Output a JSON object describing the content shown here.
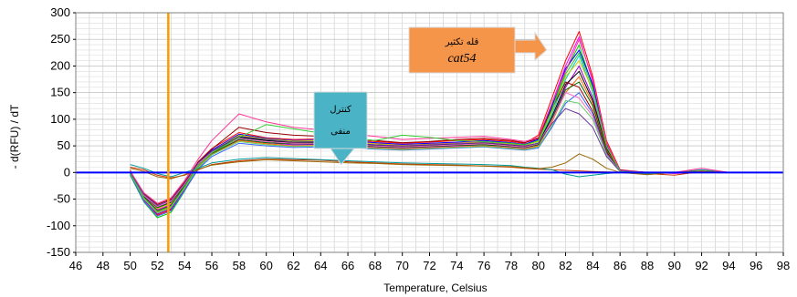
{
  "chart_data": {
    "type": "line",
    "xlabel": "Temperature, Celsius",
    "ylabel": "- d(RFU) / dT",
    "xlim": [
      46,
      98
    ],
    "ylim": [
      -150,
      300
    ],
    "x_ticks": [
      46,
      48,
      50,
      52,
      54,
      56,
      58,
      60,
      62,
      64,
      66,
      68,
      70,
      72,
      74,
      76,
      78,
      80,
      82,
      84,
      86,
      88,
      90,
      92,
      94,
      96,
      98
    ],
    "y_ticks": [
      -150,
      -100,
      -50,
      0,
      50,
      100,
      150,
      200,
      250,
      300
    ],
    "grid": true,
    "baseline": {
      "y": 0,
      "color": "#0000ff"
    },
    "marker_line": {
      "x": 52.8,
      "color": "#ff9900"
    },
    "annotations": [
      {
        "lines": [
          "قله تکثیر",
          "cat54"
        ],
        "fill": "#f4954a",
        "arrow_to": [
          80.6,
          230
        ]
      },
      {
        "lines": [
          "کنترل",
          "منفی"
        ],
        "fill": "#4ab3c6",
        "arrow_to": [
          65.5,
          15
        ]
      }
    ],
    "series_colors": [
      "#ff0000",
      "#ff00ff",
      "#00cc00",
      "#0000ff",
      "#00cccc",
      "#cccc00",
      "#9900cc",
      "#000000",
      "#ff6600",
      "#006600",
      "#990000",
      "#3366ff",
      "#ff66cc",
      "#66cc66",
      "#663399",
      "#cc3300",
      "#009999",
      "#996600",
      "#ff3399",
      "#33cc33"
    ],
    "series_note": "approximate melt curves",
    "series": [
      {
        "x": [
          50,
          51,
          52,
          53,
          54,
          55,
          56,
          58,
          60,
          62,
          64,
          66,
          68,
          70,
          72,
          74,
          76,
          78,
          79,
          80,
          81,
          82,
          83,
          84,
          85,
          86,
          88,
          90,
          92,
          94
        ],
        "values": [
          5,
          -50,
          -80,
          -70,
          -30,
          20,
          45,
          75,
          65,
          62,
          63,
          62,
          58,
          55,
          57,
          60,
          62,
          58,
          55,
          70,
          140,
          210,
          265,
          180,
          60,
          5,
          0,
          0,
          2,
          0
        ]
      },
      {
        "x": [
          50,
          51,
          52,
          53,
          54,
          55,
          56,
          58,
          60,
          62,
          64,
          66,
          68,
          70,
          72,
          74,
          76,
          78,
          79,
          80,
          81,
          82,
          83,
          84,
          85,
          86,
          88,
          90,
          92,
          94
        ],
        "values": [
          0,
          -45,
          -70,
          -60,
          -25,
          15,
          40,
          70,
          62,
          60,
          60,
          58,
          55,
          52,
          54,
          56,
          58,
          55,
          52,
          65,
          130,
          200,
          255,
          170,
          55,
          3,
          0,
          -2,
          0,
          0
        ]
      },
      {
        "x": [
          50,
          51,
          52,
          53,
          54,
          55,
          56,
          58,
          60,
          62,
          64,
          66,
          68,
          70,
          72,
          74,
          76,
          78,
          79,
          80,
          81,
          82,
          83,
          84,
          85,
          86,
          88,
          90,
          92,
          94
        ],
        "values": [
          -5,
          -55,
          -85,
          -75,
          -35,
          10,
          38,
          68,
          60,
          58,
          58,
          55,
          52,
          50,
          52,
          54,
          55,
          52,
          50,
          60,
          120,
          190,
          240,
          160,
          50,
          2,
          0,
          0,
          2,
          0
        ]
      },
      {
        "x": [
          50,
          51,
          52,
          53,
          54,
          55,
          56,
          58,
          60,
          62,
          64,
          66,
          68,
          70,
          72,
          74,
          76,
          78,
          79,
          80,
          81,
          82,
          83,
          84,
          85,
          86,
          88,
          90,
          92,
          94
        ],
        "values": [
          0,
          -40,
          -65,
          -55,
          -20,
          18,
          42,
          72,
          64,
          60,
          61,
          60,
          56,
          53,
          55,
          57,
          60,
          56,
          53,
          62,
          125,
          195,
          230,
          165,
          52,
          4,
          0,
          0,
          0,
          0
        ]
      },
      {
        "x": [
          50,
          51,
          52,
          53,
          54,
          55,
          56,
          58,
          60,
          62,
          64,
          66,
          68,
          70,
          72,
          74,
          76,
          78,
          79,
          80,
          81,
          82,
          83,
          84,
          85,
          86,
          88,
          90,
          92,
          94
        ],
        "values": [
          -2,
          -48,
          -75,
          -65,
          -28,
          12,
          36,
          65,
          58,
          55,
          56,
          54,
          50,
          48,
          50,
          52,
          54,
          50,
          48,
          56,
          110,
          175,
          220,
          150,
          48,
          2,
          0,
          0,
          1,
          0
        ]
      },
      {
        "x": [
          50,
          51,
          52,
          53,
          54,
          55,
          56,
          58,
          60,
          62,
          64,
          66,
          68,
          70,
          72,
          74,
          76,
          78,
          79,
          80,
          81,
          82,
          83,
          84,
          85,
          86,
          88,
          90,
          92,
          94
        ],
        "values": [
          3,
          -42,
          -68,
          -58,
          -22,
          16,
          40,
          70,
          63,
          59,
          60,
          58,
          54,
          51,
          53,
          55,
          57,
          54,
          51,
          58,
          115,
          180,
          210,
          155,
          50,
          3,
          0,
          -1,
          0,
          0
        ]
      },
      {
        "x": [
          50,
          51,
          52,
          53,
          54,
          55,
          56,
          58,
          60,
          62,
          64,
          66,
          68,
          70,
          72,
          74,
          76,
          78,
          79,
          80,
          81,
          82,
          83,
          84,
          85,
          86,
          88,
          90,
          92,
          94
        ],
        "values": [
          -3,
          -52,
          -78,
          -68,
          -32,
          8,
          34,
          62,
          56,
          52,
          53,
          51,
          48,
          46,
          48,
          50,
          52,
          48,
          46,
          52,
          100,
          160,
          200,
          140,
          45,
          2,
          0,
          0,
          0,
          0
        ]
      },
      {
        "x": [
          50,
          51,
          52,
          53,
          54,
          55,
          56,
          58,
          60,
          62,
          64,
          66,
          68,
          70,
          72,
          74,
          76,
          78,
          79,
          80,
          81,
          82,
          83,
          84,
          85,
          86,
          88,
          90,
          92,
          94
        ],
        "values": [
          1,
          -46,
          -72,
          -62,
          -26,
          14,
          38,
          66,
          60,
          56,
          57,
          55,
          51,
          49,
          51,
          53,
          55,
          51,
          49,
          54,
          105,
          165,
          190,
          135,
          44,
          2,
          0,
          0,
          1,
          0
        ]
      },
      {
        "x": [
          50,
          51,
          52,
          53,
          54,
          55,
          56,
          58,
          60,
          62,
          64,
          66,
          68,
          70,
          72,
          74,
          76,
          78,
          79,
          80,
          81,
          82,
          83,
          84,
          85,
          86,
          88,
          90,
          92,
          94
        ],
        "values": [
          -1,
          -50,
          -74,
          -64,
          -30,
          10,
          35,
          60,
          54,
          50,
          51,
          49,
          46,
          44,
          46,
          48,
          50,
          46,
          44,
          50,
          95,
          150,
          180,
          130,
          42,
          2,
          0,
          0,
          0,
          0
        ]
      },
      {
        "x": [
          50,
          51,
          52,
          53,
          54,
          55,
          56,
          58,
          60,
          62,
          64,
          66,
          68,
          70,
          72,
          74,
          76,
          78,
          79,
          80,
          81,
          82,
          83,
          84,
          85,
          86,
          88,
          90,
          92,
          94
        ],
        "values": [
          2,
          -44,
          -66,
          -56,
          -24,
          14,
          36,
          62,
          56,
          54,
          54,
          52,
          49,
          47,
          49,
          51,
          52,
          49,
          47,
          52,
          100,
          155,
          170,
          125,
          40,
          2,
          0,
          0,
          0,
          0
        ]
      },
      {
        "x": [
          50,
          51,
          52,
          53,
          54,
          55,
          56,
          58,
          60,
          62,
          64,
          66,
          68,
          70,
          72,
          74,
          76,
          78,
          79,
          80,
          81,
          82,
          83,
          84,
          85,
          86,
          88,
          90,
          92,
          94
        ],
        "values": [
          0,
          -40,
          -60,
          -50,
          -18,
          20,
          44,
          85,
          75,
          70,
          68,
          64,
          60,
          56,
          58,
          62,
          64,
          60,
          56,
          64,
          120,
          170,
          160,
          115,
          38,
          2,
          0,
          0,
          0,
          0
        ]
      },
      {
        "x": [
          50,
          51,
          52,
          53,
          54,
          55,
          56,
          58,
          60,
          62,
          64,
          66,
          68,
          70,
          72,
          74,
          76,
          78,
          79,
          80,
          81,
          82,
          83,
          84,
          85,
          86,
          88,
          90,
          92,
          94
        ],
        "values": [
          -4,
          -54,
          -82,
          -72,
          -34,
          6,
          30,
          55,
          50,
          47,
          48,
          46,
          44,
          42,
          44,
          46,
          48,
          44,
          42,
          46,
          85,
          130,
          150,
          110,
          36,
          2,
          0,
          0,
          1,
          0
        ]
      },
      {
        "x": [
          50,
          51,
          52,
          53,
          54,
          55,
          56,
          58,
          60,
          62,
          64,
          66,
          68,
          70,
          72,
          74,
          76,
          78,
          79,
          80,
          81,
          82,
          83,
          84,
          85,
          86,
          88,
          90,
          92,
          94
        ],
        "values": [
          1,
          -43,
          -64,
          -54,
          -22,
          16,
          38,
          64,
          58,
          55,
          55,
          53,
          50,
          48,
          50,
          52,
          54,
          50,
          48,
          54,
          98,
          150,
          140,
          105,
          34,
          2,
          0,
          0,
          0,
          0
        ]
      },
      {
        "x": [
          50,
          51,
          52,
          53,
          54,
          55,
          56,
          58,
          60,
          62,
          64,
          66,
          68,
          70,
          72,
          74,
          76,
          78,
          79,
          80,
          81,
          82,
          83,
          84,
          85,
          86,
          88,
          90,
          92,
          94
        ],
        "values": [
          -2,
          -49,
          -76,
          -66,
          -29,
          9,
          33,
          58,
          52,
          49,
          50,
          48,
          45,
          43,
          45,
          47,
          49,
          45,
          43,
          48,
          88,
          135,
          130,
          100,
          32,
          2,
          0,
          0,
          0,
          0
        ]
      },
      {
        "x": [
          50,
          51,
          52,
          53,
          54,
          55,
          56,
          58,
          60,
          62,
          64,
          66,
          68,
          70,
          72,
          74,
          76,
          78,
          79,
          80,
          81,
          82,
          83,
          84,
          85,
          86,
          88,
          90,
          92,
          94
        ],
        "values": [
          0,
          -41,
          -62,
          -52,
          -20,
          18,
          40,
          68,
          62,
          57,
          58,
          56,
          52,
          50,
          52,
          54,
          56,
          52,
          50,
          55,
          92,
          120,
          110,
          85,
          30,
          2,
          0,
          0,
          0,
          0
        ]
      },
      {
        "x": [
          50,
          51,
          52,
          53,
          54,
          55,
          56,
          58,
          60,
          62,
          64,
          66,
          68,
          70,
          72,
          74,
          76,
          78,
          79,
          80,
          81,
          82,
          83,
          84,
          85,
          86,
          88,
          90,
          92,
          94
        ],
        "values": [
          10,
          5,
          -5,
          -10,
          -5,
          5,
          15,
          22,
          25,
          24,
          23,
          20,
          18,
          16,
          15,
          14,
          12,
          10,
          8,
          6,
          5,
          4,
          3,
          2,
          1,
          0,
          -2,
          -5,
          2,
          0
        ]
      },
      {
        "x": [
          50,
          51,
          52,
          53,
          54,
          55,
          56,
          58,
          60,
          62,
          64,
          66,
          68,
          70,
          72,
          74,
          76,
          78,
          79,
          80,
          81,
          82,
          83,
          84,
          85,
          86,
          88,
          90,
          92,
          94
        ],
        "values": [
          15,
          8,
          -2,
          -8,
          0,
          8,
          18,
          25,
          28,
          26,
          24,
          22,
          20,
          18,
          17,
          16,
          15,
          13,
          10,
          8,
          5,
          -3,
          -8,
          -5,
          -2,
          0,
          -3,
          0,
          5,
          0
        ]
      },
      {
        "x": [
          50,
          51,
          52,
          53,
          54,
          55,
          56,
          58,
          60,
          62,
          64,
          66,
          68,
          70,
          72,
          74,
          76,
          78,
          79,
          80,
          81,
          82,
          83,
          84,
          85,
          86,
          88,
          90,
          92,
          94
        ],
        "values": [
          8,
          2,
          -8,
          -12,
          -4,
          6,
          14,
          20,
          24,
          22,
          20,
          18,
          17,
          15,
          14,
          13,
          12,
          11,
          9,
          7,
          10,
          18,
          35,
          25,
          8,
          0,
          -4,
          0,
          3,
          0
        ]
      },
      {
        "x": [
          50,
          51,
          52,
          53,
          54,
          55,
          56,
          58,
          60,
          62,
          64,
          66,
          68,
          70,
          72,
          74,
          76,
          78,
          79,
          80,
          81,
          82,
          83,
          84,
          85,
          86,
          88,
          90,
          92,
          94
        ],
        "values": [
          3,
          -38,
          -58,
          -48,
          -15,
          25,
          60,
          110,
          95,
          85,
          80,
          72,
          68,
          62,
          64,
          66,
          68,
          62,
          58,
          66,
          130,
          190,
          250,
          175,
          56,
          3,
          0,
          0,
          8,
          0
        ]
      },
      {
        "x": [
          50,
          51,
          52,
          53,
          54,
          55,
          56,
          58,
          60,
          62,
          64,
          66,
          68,
          70,
          72,
          74,
          76,
          78,
          79,
          80,
          81,
          82,
          83,
          84,
          85,
          86,
          88,
          90,
          92,
          94
        ],
        "values": [
          -2,
          -47,
          -73,
          -63,
          -27,
          13,
          37,
          66,
          90,
          82,
          74,
          65,
          60,
          70,
          66,
          60,
          58,
          55,
          52,
          60,
          118,
          185,
          225,
          158,
          50,
          2,
          0,
          0,
          0,
          0
        ]
      }
    ]
  }
}
